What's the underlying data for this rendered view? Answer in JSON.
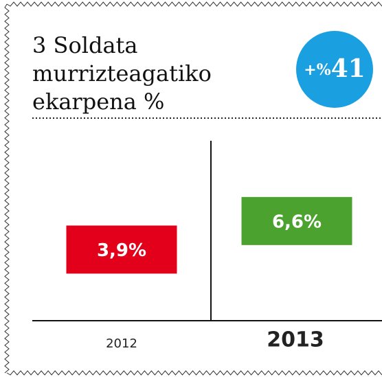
{
  "chart_data": {
    "type": "bar",
    "title": "3 Soldata murrizteagatiko ekarpena %",
    "badge": {
      "prefix": "+%",
      "value": "41"
    },
    "categories": [
      "2012",
      "2013"
    ],
    "values": [
      3.9,
      6.6
    ],
    "value_labels": [
      "3,9%",
      "6,6%"
    ],
    "colors": [
      "#e2001a",
      "#4ca22f"
    ],
    "badge_color": "#1aa0e0"
  }
}
